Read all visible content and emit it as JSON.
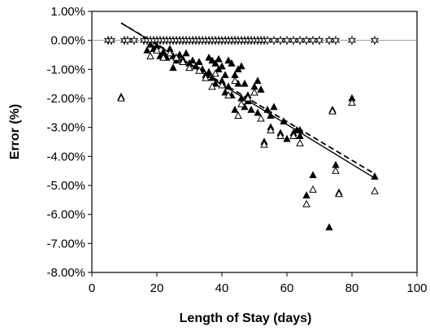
{
  "chart_data": {
    "type": "scatter",
    "xlabel": "Length of Stay (days)",
    "ylabel": "Error (%)",
    "xlim": [
      0,
      100
    ],
    "ylim": [
      -8,
      1
    ],
    "x_ticks": [
      0,
      20,
      40,
      60,
      80,
      100
    ],
    "x_tick_labels": [
      "0",
      "20",
      "40",
      "60",
      "80",
      "100"
    ],
    "y_ticks": [
      1,
      0,
      -1,
      -2,
      -3,
      -4,
      -5,
      -6,
      -7,
      -8
    ],
    "y_tick_labels": [
      "1.00%",
      "0.00%",
      "-1.00%",
      "-2.00%",
      "-3.00%",
      "-4.00%",
      "-5.00%",
      "-6.00%",
      "-7.00%",
      "-8.00%"
    ],
    "grid": false,
    "reference_line_y": 0,
    "series": [
      {
        "marker": "filled-triangle",
        "points": [
          [
            9,
            -1.95
          ],
          [
            17,
            -0.35
          ],
          [
            18,
            -0.15
          ],
          [
            19,
            -0.3
          ],
          [
            20,
            -0.2
          ],
          [
            21,
            -0.55
          ],
          [
            22,
            -0.4
          ],
          [
            22,
            -0.5
          ],
          [
            23,
            -0.6
          ],
          [
            24,
            -0.3
          ],
          [
            25,
            -0.55
          ],
          [
            25,
            -0.95
          ],
          [
            26,
            -0.7
          ],
          [
            27,
            -0.5
          ],
          [
            28,
            -0.65
          ],
          [
            29,
            -0.45
          ],
          [
            30,
            -0.8
          ],
          [
            31,
            -0.7
          ],
          [
            32,
            -0.9
          ],
          [
            33,
            -0.75
          ],
          [
            34,
            -1.0
          ],
          [
            35,
            -1.2
          ],
          [
            36,
            -0.6
          ],
          [
            36,
            -1.1
          ],
          [
            37,
            -0.7
          ],
          [
            37,
            -1.3
          ],
          [
            38,
            -0.8
          ],
          [
            38,
            -1.5
          ],
          [
            39,
            -0.65
          ],
          [
            39,
            -1.0
          ],
          [
            40,
            -1.4
          ],
          [
            40,
            -0.9
          ],
          [
            41,
            -1.2
          ],
          [
            41,
            -1.8
          ],
          [
            42,
            -0.7
          ],
          [
            42,
            -1.6
          ],
          [
            43,
            -0.8
          ],
          [
            43,
            -1.9
          ],
          [
            44,
            -1.2
          ],
          [
            44,
            -2.4
          ],
          [
            45,
            -1.0
          ],
          [
            45,
            -1.5
          ],
          [
            46,
            -0.9
          ],
          [
            46,
            -2.0
          ],
          [
            47,
            -2.3
          ],
          [
            47,
            -1.5
          ],
          [
            48,
            -1.9
          ],
          [
            48,
            -2.1
          ],
          [
            49,
            -2.4
          ],
          [
            50,
            -1.8
          ],
          [
            50,
            -1.6
          ],
          [
            51,
            -1.4
          ],
          [
            51,
            -2.5
          ],
          [
            52,
            -1.7
          ],
          [
            53,
            -3.5
          ],
          [
            54,
            -2.4
          ],
          [
            55,
            -3.0
          ],
          [
            55,
            -2.6
          ],
          [
            56,
            -2.3
          ],
          [
            58,
            -3.2
          ],
          [
            59,
            -2.8
          ],
          [
            60,
            -3.4
          ],
          [
            62,
            -3.2
          ],
          [
            63,
            -3.1
          ],
          [
            64,
            -3.3
          ],
          [
            64,
            -3.1
          ],
          [
            66,
            -5.35
          ],
          [
            68,
            -4.65
          ],
          [
            73,
            -6.45
          ],
          [
            74,
            -2.4
          ],
          [
            75,
            -4.3
          ],
          [
            76,
            -5.25
          ],
          [
            80,
            -2.0
          ],
          [
            87,
            -4.7
          ]
        ]
      },
      {
        "marker": "open-triangle",
        "points": [
          [
            9,
            -2.0
          ],
          [
            18,
            -0.55
          ],
          [
            20,
            -0.35
          ],
          [
            22,
            -0.6
          ],
          [
            24,
            -0.45
          ],
          [
            26,
            -0.6
          ],
          [
            28,
            -0.75
          ],
          [
            30,
            -0.95
          ],
          [
            33,
            -1.05
          ],
          [
            35,
            -1.3
          ],
          [
            37,
            -1.6
          ],
          [
            38,
            -1.15
          ],
          [
            40,
            -1.55
          ],
          [
            42,
            -1.9
          ],
          [
            44,
            -1.4
          ],
          [
            45,
            -2.6
          ],
          [
            46,
            -2.2
          ],
          [
            48,
            -2.0
          ],
          [
            50,
            -1.8
          ],
          [
            52,
            -2.7
          ],
          [
            53,
            -3.6
          ],
          [
            55,
            -3.1
          ],
          [
            58,
            -3.3
          ],
          [
            62,
            -3.3
          ],
          [
            64,
            -3.55
          ],
          [
            66,
            -5.65
          ],
          [
            68,
            -5.15
          ],
          [
            74,
            -2.45
          ],
          [
            75,
            -4.5
          ],
          [
            76,
            -5.3
          ],
          [
            80,
            -2.15
          ],
          [
            87,
            -5.2
          ]
        ]
      },
      {
        "marker": "star",
        "points": [
          [
            5,
            0
          ],
          [
            6,
            0
          ],
          [
            10,
            0
          ],
          [
            11,
            0
          ],
          [
            13,
            0
          ],
          [
            16,
            0
          ],
          [
            17,
            0
          ],
          [
            18,
            0
          ],
          [
            19,
            0
          ],
          [
            20,
            0
          ],
          [
            21,
            0
          ],
          [
            22,
            0
          ],
          [
            23,
            0
          ],
          [
            24,
            0
          ],
          [
            25,
            0
          ],
          [
            26,
            0
          ],
          [
            27,
            0
          ],
          [
            28,
            0
          ],
          [
            29,
            0
          ],
          [
            30,
            0
          ],
          [
            31,
            0
          ],
          [
            32,
            0
          ],
          [
            33,
            0
          ],
          [
            34,
            0
          ],
          [
            35,
            0
          ],
          [
            36,
            0
          ],
          [
            37,
            0
          ],
          [
            38,
            0
          ],
          [
            39,
            0
          ],
          [
            40,
            0
          ],
          [
            41,
            0
          ],
          [
            42,
            0
          ],
          [
            43,
            0
          ],
          [
            44,
            0
          ],
          [
            45,
            0
          ],
          [
            46,
            0
          ],
          [
            47,
            0
          ],
          [
            48,
            0
          ],
          [
            49,
            0
          ],
          [
            50,
            0
          ],
          [
            51,
            0
          ],
          [
            52,
            0
          ],
          [
            53,
            0
          ],
          [
            54,
            0
          ],
          [
            56,
            0
          ],
          [
            58,
            0
          ],
          [
            60,
            0
          ],
          [
            62,
            0
          ],
          [
            64,
            0
          ],
          [
            66,
            0
          ],
          [
            68,
            0
          ],
          [
            70,
            0
          ],
          [
            73,
            0
          ],
          [
            75,
            0
          ],
          [
            80,
            0
          ],
          [
            87,
            0
          ]
        ]
      }
    ],
    "trendlines": [
      {
        "style": "solid",
        "x": [
          9,
          87
        ],
        "y": [
          0.6,
          -4.75
        ]
      },
      {
        "style": "dashed",
        "x": [
          9,
          87
        ],
        "y": [
          0.6,
          -4.6
        ]
      }
    ]
  }
}
